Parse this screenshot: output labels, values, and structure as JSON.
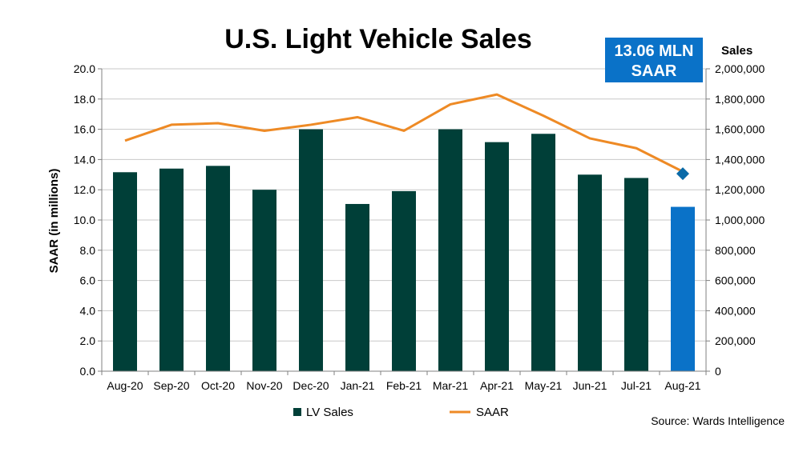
{
  "chart_data": {
    "type": "bar",
    "title": "U.S. Light Vehicle Sales",
    "categories": [
      "Aug-20",
      "Sep-20",
      "Oct-20",
      "Nov-20",
      "Dec-20",
      "Jan-21",
      "Feb-21",
      "Mar-21",
      "Apr-21",
      "May-21",
      "Jun-21",
      "Jul-21",
      "Aug-21"
    ],
    "series": [
      {
        "name": "LV Sales",
        "type": "bar",
        "axis": "right",
        "values": [
          1316000,
          1340000,
          1358000,
          1200000,
          1600000,
          1106000,
          1191000,
          1600000,
          1515000,
          1570000,
          1300000,
          1278000,
          1087000
        ],
        "colors": [
          "#003f38",
          "#003f38",
          "#003f38",
          "#003f38",
          "#003f38",
          "#003f38",
          "#003f38",
          "#003f38",
          "#003f38",
          "#003f38",
          "#003f38",
          "#003f38",
          "#0a72c8"
        ]
      },
      {
        "name": "SAAR",
        "type": "line",
        "axis": "left",
        "color": "#ee8a25",
        "values": [
          15.25,
          16.3,
          16.4,
          15.9,
          16.3,
          16.8,
          15.9,
          17.65,
          18.3,
          16.9,
          15.4,
          14.75,
          13.2
        ]
      }
    ],
    "marker": {
      "category": "Aug-21",
      "value": 13.06,
      "color": "#0a6aa8",
      "shape": "diamond"
    },
    "ylabel_left": "SAAR (in millions)",
    "ylabel_right": "Sales",
    "ylim_left": [
      0,
      20
    ],
    "ylim_right": [
      0,
      2000000
    ],
    "yticks_left": [
      "0.0",
      "2.0",
      "4.0",
      "6.0",
      "8.0",
      "10.0",
      "12.0",
      "14.0",
      "16.0",
      "18.0",
      "20.0"
    ],
    "yticks_right": [
      "0",
      "200,000",
      "400,000",
      "600,000",
      "800,000",
      "1,000,000",
      "1,200,000",
      "1,400,000",
      "1,600,000",
      "1,800,000",
      "2,000,000"
    ],
    "grid": true,
    "legend": "bottom-center",
    "callout": {
      "line1": "13.06 MLN",
      "line2": "SAAR",
      "color": "#0a72c8"
    },
    "source": "Source: Wards Intelligence"
  }
}
